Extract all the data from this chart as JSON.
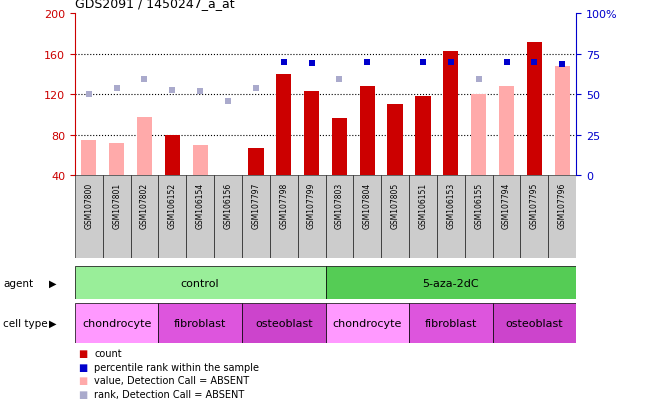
{
  "title": "GDS2091 / 1450247_a_at",
  "samples": [
    "GSM107800",
    "GSM107801",
    "GSM107802",
    "GSM106152",
    "GSM106154",
    "GSM106156",
    "GSM107797",
    "GSM107798",
    "GSM107799",
    "GSM107803",
    "GSM107804",
    "GSM107805",
    "GSM106151",
    "GSM106153",
    "GSM106155",
    "GSM107794",
    "GSM107795",
    "GSM107796"
  ],
  "count_values": [
    null,
    null,
    null,
    80,
    null,
    null,
    67,
    140,
    123,
    96,
    128,
    110,
    118,
    163,
    null,
    null,
    172,
    null
  ],
  "count_absent": [
    75,
    72,
    97,
    null,
    70,
    38,
    null,
    null,
    null,
    null,
    null,
    null,
    null,
    null,
    120,
    128,
    null,
    148
  ],
  "percentile_values": [
    null,
    null,
    null,
    null,
    null,
    null,
    null,
    152,
    151,
    null,
    152,
    null,
    152,
    152,
    null,
    152,
    152,
    150
  ],
  "percentile_absent": [
    120,
    126,
    135,
    124,
    123,
    113,
    126,
    null,
    null,
    135,
    null,
    null,
    null,
    null,
    135,
    null,
    null,
    null
  ],
  "ylim_left": [
    40,
    200
  ],
  "ylim_right": [
    0,
    100
  ],
  "left_ticks": [
    40,
    80,
    120,
    160,
    200
  ],
  "right_ticks": [
    0,
    25,
    50,
    75,
    100
  ],
  "agent_groups": [
    {
      "label": "control",
      "start": 0,
      "end": 9,
      "color": "#99ee99"
    },
    {
      "label": "5-aza-2dC",
      "start": 9,
      "end": 18,
      "color": "#55cc55"
    }
  ],
  "cell_type_groups": [
    {
      "label": "chondrocyte",
      "start": 0,
      "end": 3,
      "color": "#ff99ff"
    },
    {
      "label": "fibroblast",
      "start": 3,
      "end": 6,
      "color": "#dd55dd"
    },
    {
      "label": "osteoblast",
      "start": 6,
      "end": 9,
      "color": "#cc44cc"
    },
    {
      "label": "chondrocyte",
      "start": 9,
      "end": 12,
      "color": "#ff99ff"
    },
    {
      "label": "fibroblast",
      "start": 12,
      "end": 15,
      "color": "#dd55dd"
    },
    {
      "label": "osteoblast",
      "start": 15,
      "end": 18,
      "color": "#cc44cc"
    }
  ],
  "bar_width": 0.55,
  "count_color": "#cc0000",
  "count_absent_color": "#ffaaaa",
  "percentile_color": "#0000cc",
  "percentile_absent_color": "#aaaacc",
  "sample_bg_color": "#cccccc",
  "grid_color": "#000000"
}
